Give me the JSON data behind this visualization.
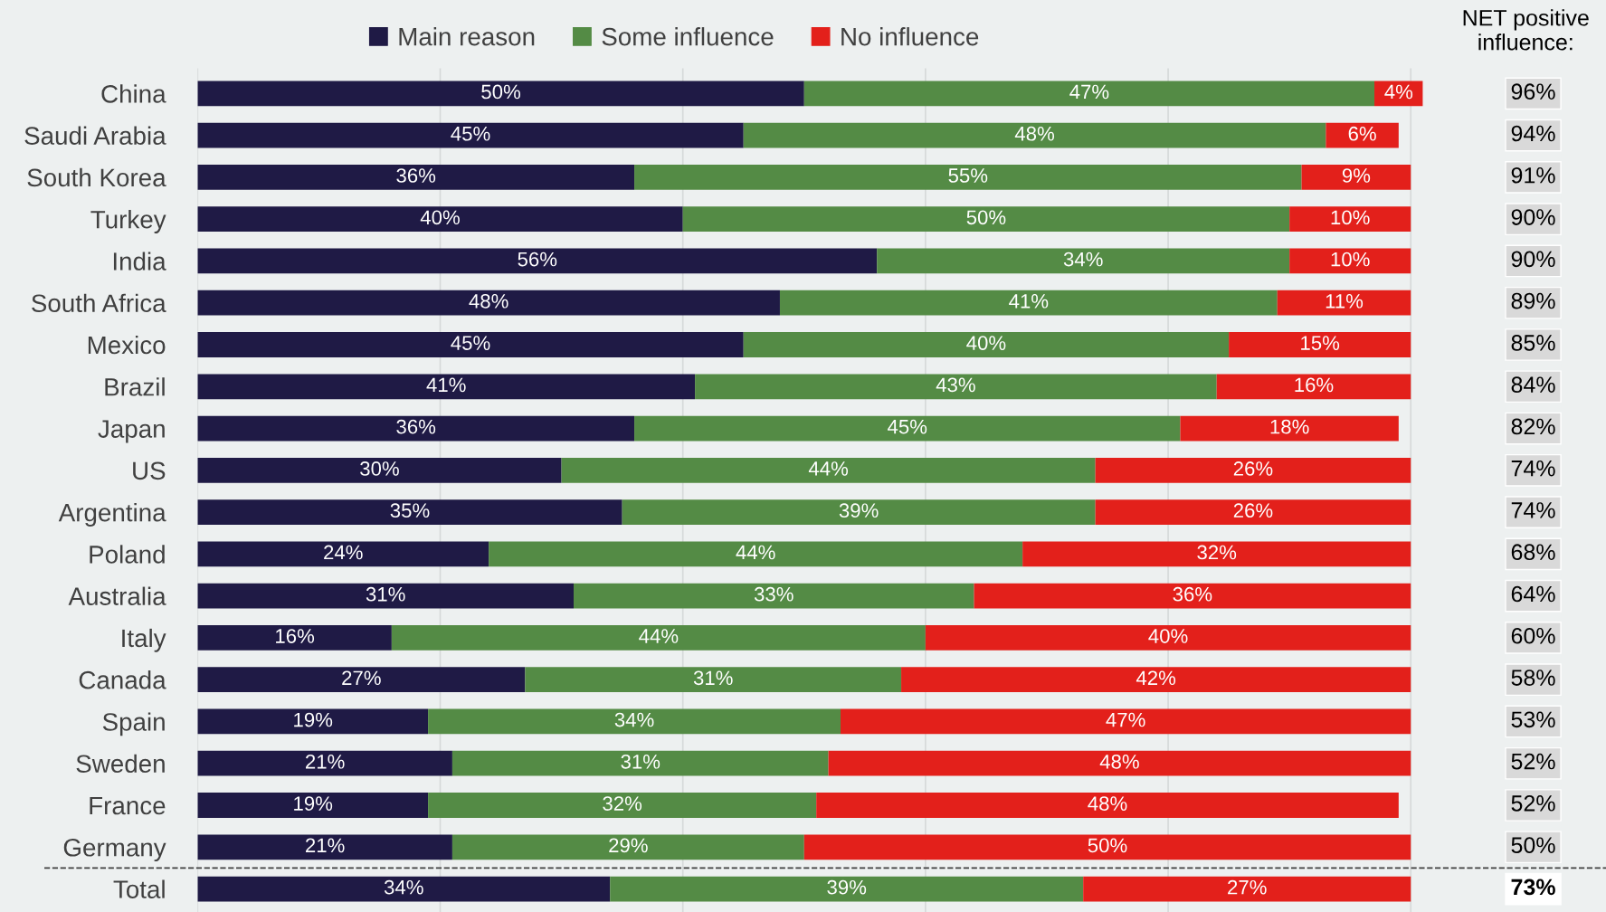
{
  "chart_data": {
    "type": "bar",
    "orientation": "horizontal",
    "stacked": true,
    "categories": [
      "China",
      "Saudi Arabia",
      "South Korea",
      "Turkey",
      "India",
      "South Africa",
      "Mexico",
      "Brazil",
      "Japan",
      "US",
      "Argentina",
      "Poland",
      "Australia",
      "Italy",
      "Canada",
      "Spain",
      "Sweden",
      "France",
      "Germany",
      "Total"
    ],
    "series": [
      {
        "name": "Main reason",
        "color": "#1f1a45",
        "values": [
          50,
          45,
          36,
          40,
          56,
          48,
          45,
          41,
          36,
          30,
          35,
          24,
          31,
          16,
          27,
          19,
          21,
          19,
          21,
          34
        ],
        "value_labels": [
          "50%",
          "45%",
          "36%",
          "40%",
          "56%",
          "48%",
          "45%",
          "41%",
          "36%",
          "30%",
          "35%",
          "24%",
          "31%",
          "16%",
          "27%",
          "19%",
          "21%",
          "19%",
          "21%",
          "34%"
        ]
      },
      {
        "name": "Some influence",
        "color": "#548b45",
        "values": [
          47,
          48,
          55,
          50,
          34,
          41,
          40,
          43,
          45,
          44,
          39,
          44,
          33,
          44,
          31,
          34,
          31,
          32,
          29,
          39
        ],
        "value_labels": [
          "47%",
          "48%",
          "55%",
          "50%",
          "34%",
          "41%",
          "40%",
          "43%",
          "45%",
          "44%",
          "39%",
          "44%",
          "33%",
          "44%",
          "31%",
          "34%",
          "31%",
          "32%",
          "29%",
          "39%"
        ]
      },
      {
        "name": "No influence",
        "color": "#e3201b",
        "values": [
          4,
          6,
          9,
          10,
          10,
          11,
          15,
          16,
          18,
          26,
          26,
          32,
          36,
          40,
          42,
          47,
          48,
          48,
          50,
          27
        ],
        "value_labels": [
          "4%",
          "6%",
          "9%",
          "10%",
          "10%",
          "11%",
          "15%",
          "16%",
          "18%",
          "26%",
          "26%",
          "32%",
          "36%",
          "40%",
          "42%",
          "47%",
          "48%",
          "48%",
          "50%",
          "27%"
        ]
      }
    ],
    "grid": "x",
    "legend": "top",
    "annotations": [
      "NET positive influence:",
      "96%",
      "94%",
      "91%",
      "90%",
      "90%",
      "89%",
      "85%",
      "84%",
      "82%",
      "74%",
      "74%",
      "68%",
      "64%",
      "60%",
      "58%",
      "53%",
      "52%",
      "52%",
      "50%",
      "73%"
    ]
  }
}
